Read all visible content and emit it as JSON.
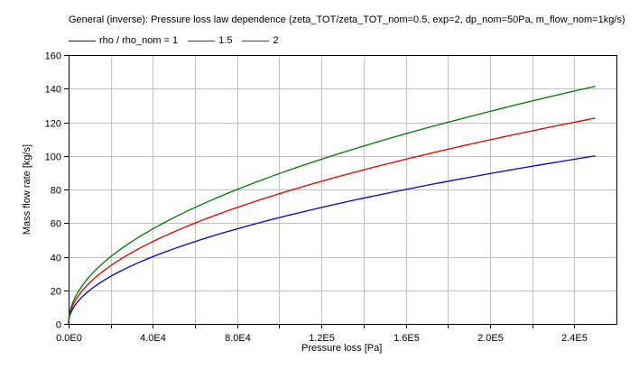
{
  "chart": {
    "title": "General (inverse): Pressure loss law dependence (zeta_TOT/zeta_TOT_nom=0.5, exp=2, dp_nom=50Pa, m_flow_nom=1kg/s)",
    "xlabel": "Pressure loss [Pa]",
    "ylabel": "Mass flow rate [kg/s]",
    "legend": [
      {
        "label": "rho / rho_nom = 1",
        "color": "#0000cc"
      },
      {
        "label": "1.5",
        "color": "#dd0000"
      },
      {
        "label": "2",
        "color": "#007700"
      }
    ]
  },
  "chart_data": {
    "type": "line",
    "title": "General (inverse): Pressure loss law dependence (zeta_TOT/zeta_TOT_nom=0.5, exp=2, dp_nom=50Pa, m_flow_nom=1kg/s)",
    "xlabel": "Pressure loss [Pa]",
    "ylabel": "Mass flow rate [kg/s]",
    "xlim": [
      0,
      260000
    ],
    "ylim": [
      0,
      160
    ],
    "x_ticks": [
      0,
      40000,
      80000,
      120000,
      160000,
      200000,
      240000
    ],
    "x_tick_labels": [
      "0.0E0",
      "4.0E4",
      "8.0E4",
      "1.2E5",
      "1.6E5",
      "2.0E5",
      "2.4E5"
    ],
    "x_minor_step": 20000,
    "y_ticks": [
      0,
      20,
      40,
      60,
      80,
      100,
      120,
      140,
      160
    ],
    "y_tick_labels": [
      "0",
      "20",
      "40",
      "60",
      "80",
      "100",
      "120",
      "140",
      "160"
    ],
    "grid": true,
    "legend_position": "top",
    "x": [
      0,
      2500,
      10000,
      22500,
      40000,
      62500,
      90000,
      122500,
      160000,
      202500,
      250000
    ],
    "series": [
      {
        "name": "rho / rho_nom = 1",
        "color": "#0000cc",
        "values": [
          0,
          10,
          20,
          30,
          40,
          50,
          60,
          70,
          80,
          90,
          100
        ]
      },
      {
        "name": "1.5",
        "color": "#dd0000",
        "values": [
          0,
          12.25,
          24.49,
          36.74,
          48.99,
          61.24,
          73.48,
          85.73,
          97.98,
          110.23,
          122.47
        ]
      },
      {
        "name": "2",
        "color": "#007700",
        "values": [
          0,
          14.14,
          28.28,
          42.43,
          56.57,
          70.71,
          84.85,
          98.99,
          113.14,
          127.28,
          141.42
        ]
      }
    ]
  }
}
